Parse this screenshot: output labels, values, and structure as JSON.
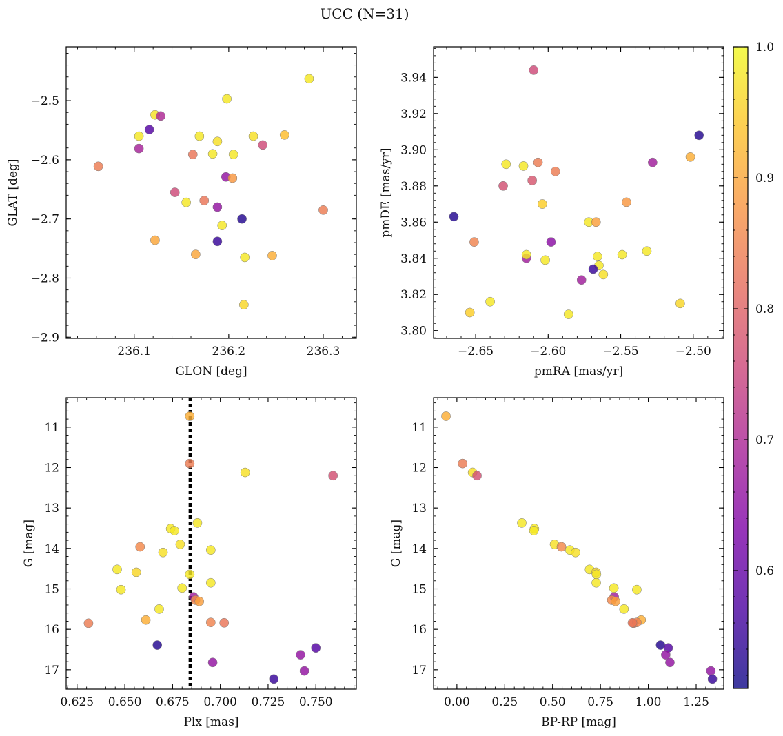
{
  "figure": {
    "title": "UCC (N=31)"
  },
  "colorbar": {
    "min": 0.51,
    "max": 1.0,
    "ticks": [
      0.6,
      0.7,
      0.8,
      0.9,
      1.0
    ],
    "tick_labels": [
      "0.6",
      "0.7",
      "0.8",
      "0.9",
      "1.0"
    ],
    "colormap": "plasma"
  },
  "chart_data": [
    {
      "type": "scatter",
      "xlabel": "GLON [deg]",
      "ylabel": "GLAT [deg]",
      "xlim": [
        236.028,
        236.335
      ],
      "ylim": [
        -2.902,
        -2.409
      ],
      "xticks": [
        236.1,
        236.2,
        236.3
      ],
      "xtick_labels": [
        "236.1",
        "236.2",
        "236.3"
      ],
      "yticks": [
        -2.9,
        -2.8,
        -2.7,
        -2.6,
        -2.5
      ],
      "ytick_labels": [
        "−2.9",
        "−2.8",
        "−2.7",
        "−2.6",
        "−2.5"
      ],
      "points": [
        {
          "x": 236.285,
          "y": -2.463,
          "c": 0.98
        },
        {
          "x": 236.198,
          "y": -2.497,
          "c": 0.98
        },
        {
          "x": 236.122,
          "y": -2.524,
          "c": 0.97
        },
        {
          "x": 236.128,
          "y": -2.526,
          "c": 0.7
        },
        {
          "x": 236.116,
          "y": -2.549,
          "c": 0.58
        },
        {
          "x": 236.105,
          "y": -2.56,
          "c": 0.98
        },
        {
          "x": 236.169,
          "y": -2.56,
          "c": 0.98
        },
        {
          "x": 236.259,
          "y": -2.558,
          "c": 0.93
        },
        {
          "x": 236.226,
          "y": -2.56,
          "c": 0.97
        },
        {
          "x": 236.188,
          "y": -2.569,
          "c": 0.97
        },
        {
          "x": 236.236,
          "y": -2.575,
          "c": 0.76
        },
        {
          "x": 236.105,
          "y": -2.581,
          "c": 0.69
        },
        {
          "x": 236.162,
          "y": -2.591,
          "c": 0.83
        },
        {
          "x": 236.183,
          "y": -2.59,
          "c": 0.98
        },
        {
          "x": 236.205,
          "y": -2.591,
          "c": 0.98
        },
        {
          "x": 236.062,
          "y": -2.611,
          "c": 0.84
        },
        {
          "x": 236.197,
          "y": -2.629,
          "c": 0.66
        },
        {
          "x": 236.204,
          "y": -2.631,
          "c": 0.88
        },
        {
          "x": 236.143,
          "y": -2.655,
          "c": 0.76
        },
        {
          "x": 236.155,
          "y": -2.672,
          "c": 0.98
        },
        {
          "x": 236.174,
          "y": -2.669,
          "c": 0.83
        },
        {
          "x": 236.188,
          "y": -2.68,
          "c": 0.66
        },
        {
          "x": 236.3,
          "y": -2.685,
          "c": 0.84
        },
        {
          "x": 236.214,
          "y": -2.7,
          "c": 0.53
        },
        {
          "x": 236.193,
          "y": -2.711,
          "c": 0.98
        },
        {
          "x": 236.122,
          "y": -2.736,
          "c": 0.9
        },
        {
          "x": 236.188,
          "y": -2.738,
          "c": 0.55
        },
        {
          "x": 236.165,
          "y": -2.76,
          "c": 0.9
        },
        {
          "x": 236.217,
          "y": -2.765,
          "c": 0.98
        },
        {
          "x": 236.246,
          "y": -2.762,
          "c": 0.91
        },
        {
          "x": 236.216,
          "y": -2.845,
          "c": 0.96
        }
      ]
    },
    {
      "type": "scatter",
      "xlabel": "pmRA [mas/yr]",
      "ylabel": "pmDE [mas/yr]",
      "xlim": [
        -2.679,
        -2.479
      ],
      "ylim": [
        3.7957,
        3.9569
      ],
      "xticks": [
        -2.65,
        -2.6,
        -2.55,
        -2.5
      ],
      "xtick_labels": [
        "−2.65",
        "−2.60",
        "−2.55",
        "−2.50"
      ],
      "yticks": [
        3.8,
        3.82,
        3.84,
        3.86,
        3.88,
        3.9,
        3.92,
        3.94
      ],
      "ytick_labels": [
        "3.80",
        "3.82",
        "3.84",
        "3.86",
        "3.88",
        "3.90",
        "3.92",
        "3.94"
      ],
      "points": [
        {
          "x": -2.61,
          "y": 3.944,
          "c": 0.76
        },
        {
          "x": -2.496,
          "y": 3.908,
          "c": 0.53
        },
        {
          "x": -2.502,
          "y": 3.896,
          "c": 0.91
        },
        {
          "x": -2.528,
          "y": 3.893,
          "c": 0.68
        },
        {
          "x": -2.629,
          "y": 3.892,
          "c": 0.98
        },
        {
          "x": -2.617,
          "y": 3.891,
          "c": 0.98
        },
        {
          "x": -2.607,
          "y": 3.893,
          "c": 0.84
        },
        {
          "x": -2.595,
          "y": 3.888,
          "c": 0.84
        },
        {
          "x": -2.611,
          "y": 3.883,
          "c": 0.78
        },
        {
          "x": -2.631,
          "y": 3.88,
          "c": 0.77
        },
        {
          "x": -2.604,
          "y": 3.87,
          "c": 0.95
        },
        {
          "x": -2.546,
          "y": 3.871,
          "c": 0.88
        },
        {
          "x": -2.665,
          "y": 3.863,
          "c": 0.53
        },
        {
          "x": -2.572,
          "y": 3.86,
          "c": 0.98
        },
        {
          "x": -2.567,
          "y": 3.86,
          "c": 0.89
        },
        {
          "x": -2.651,
          "y": 3.849,
          "c": 0.85
        },
        {
          "x": -2.598,
          "y": 3.849,
          "c": 0.65
        },
        {
          "x": -2.532,
          "y": 3.844,
          "c": 0.98
        },
        {
          "x": -2.549,
          "y": 3.842,
          "c": 0.98
        },
        {
          "x": -2.566,
          "y": 3.841,
          "c": 0.98
        },
        {
          "x": -2.615,
          "y": 3.84,
          "c": 0.68
        },
        {
          "x": -2.615,
          "y": 3.842,
          "c": 0.98
        },
        {
          "x": -2.602,
          "y": 3.839,
          "c": 0.98
        },
        {
          "x": -2.565,
          "y": 3.836,
          "c": 0.98
        },
        {
          "x": -2.569,
          "y": 3.834,
          "c": 0.55
        },
        {
          "x": -2.562,
          "y": 3.831,
          "c": 0.97
        },
        {
          "x": -2.577,
          "y": 3.828,
          "c": 0.68
        },
        {
          "x": -2.64,
          "y": 3.816,
          "c": 0.98
        },
        {
          "x": -2.509,
          "y": 3.815,
          "c": 0.96
        },
        {
          "x": -2.654,
          "y": 3.81,
          "c": 0.95
        },
        {
          "x": -2.586,
          "y": 3.809,
          "c": 0.98
        }
      ]
    },
    {
      "type": "scatter",
      "xlabel": "Plx [mas]",
      "ylabel": "G [mag]",
      "xlim": [
        0.6193,
        0.7712
      ],
      "ylim": [
        17.48,
        10.27
      ],
      "y_inverted": true,
      "xticks": [
        0.625,
        0.65,
        0.675,
        0.7,
        0.725,
        0.75
      ],
      "xtick_labels": [
        "0.625",
        "0.650",
        "0.675",
        "0.700",
        "0.725",
        "0.750"
      ],
      "yticks": [
        11,
        12,
        13,
        14,
        15,
        16,
        17
      ],
      "ytick_labels": [
        "11",
        "12",
        "13",
        "14",
        "15",
        "16",
        "17"
      ],
      "vline": {
        "x": 0.6843,
        "style": "dotted",
        "color": "#000000"
      },
      "points": [
        {
          "x": 0.684,
          "y": 10.73,
          "c": 0.91
        },
        {
          "x": 0.684,
          "y": 11.9,
          "c": 0.84
        },
        {
          "x": 0.713,
          "y": 12.12,
          "c": 0.97
        },
        {
          "x": 0.759,
          "y": 12.2,
          "c": 0.77
        },
        {
          "x": 0.688,
          "y": 13.37,
          "c": 0.98
        },
        {
          "x": 0.674,
          "y": 13.51,
          "c": 0.98
        },
        {
          "x": 0.676,
          "y": 13.56,
          "c": 0.98
        },
        {
          "x": 0.679,
          "y": 13.9,
          "c": 0.97
        },
        {
          "x": 0.658,
          "y": 13.96,
          "c": 0.86
        },
        {
          "x": 0.695,
          "y": 14.04,
          "c": 0.98
        },
        {
          "x": 0.67,
          "y": 14.1,
          "c": 0.97
        },
        {
          "x": 0.646,
          "y": 14.52,
          "c": 0.98
        },
        {
          "x": 0.656,
          "y": 14.59,
          "c": 0.96
        },
        {
          "x": 0.684,
          "y": 14.64,
          "c": 0.98
        },
        {
          "x": 0.695,
          "y": 14.85,
          "c": 0.98
        },
        {
          "x": 0.68,
          "y": 14.98,
          "c": 0.98
        },
        {
          "x": 0.648,
          "y": 15.02,
          "c": 0.98
        },
        {
          "x": 0.686,
          "y": 15.2,
          "c": 0.68
        },
        {
          "x": 0.687,
          "y": 15.28,
          "c": 0.86
        },
        {
          "x": 0.689,
          "y": 15.31,
          "c": 0.89
        },
        {
          "x": 0.668,
          "y": 15.5,
          "c": 0.98
        },
        {
          "x": 0.661,
          "y": 15.77,
          "c": 0.91
        },
        {
          "x": 0.631,
          "y": 15.85,
          "c": 0.84
        },
        {
          "x": 0.695,
          "y": 15.83,
          "c": 0.85
        },
        {
          "x": 0.702,
          "y": 15.84,
          "c": 0.83
        },
        {
          "x": 0.667,
          "y": 16.39,
          "c": 0.53
        },
        {
          "x": 0.75,
          "y": 16.46,
          "c": 0.58
        },
        {
          "x": 0.742,
          "y": 16.63,
          "c": 0.66
        },
        {
          "x": 0.696,
          "y": 16.82,
          "c": 0.66
        },
        {
          "x": 0.744,
          "y": 17.03,
          "c": 0.66
        },
        {
          "x": 0.728,
          "y": 17.23,
          "c": 0.55
        }
      ]
    },
    {
      "type": "scatter",
      "xlabel": "BP-RP [mag]",
      "ylabel": "G [mag]",
      "xlim": [
        -0.122,
        1.394
      ],
      "ylim": [
        17.48,
        10.27
      ],
      "y_inverted": true,
      "xticks": [
        0.0,
        0.25,
        0.5,
        0.75,
        1.0,
        1.25
      ],
      "xtick_labels": [
        "0.00",
        "0.25",
        "0.50",
        "0.75",
        "1.00",
        "1.25"
      ],
      "yticks": [
        11,
        12,
        13,
        14,
        15,
        16,
        17
      ],
      "ytick_labels": [
        "11",
        "12",
        "13",
        "14",
        "15",
        "16",
        "17"
      ],
      "points": [
        {
          "x": -0.057,
          "y": 10.73,
          "c": 0.91
        },
        {
          "x": 0.03,
          "y": 11.9,
          "c": 0.84
        },
        {
          "x": 0.082,
          "y": 12.12,
          "c": 0.97
        },
        {
          "x": 0.105,
          "y": 12.2,
          "c": 0.77
        },
        {
          "x": 0.339,
          "y": 13.37,
          "c": 0.98
        },
        {
          "x": 0.405,
          "y": 13.51,
          "c": 0.98
        },
        {
          "x": 0.402,
          "y": 13.56,
          "c": 0.98
        },
        {
          "x": 0.51,
          "y": 13.9,
          "c": 0.97
        },
        {
          "x": 0.546,
          "y": 13.96,
          "c": 0.86
        },
        {
          "x": 0.59,
          "y": 14.04,
          "c": 0.98
        },
        {
          "x": 0.62,
          "y": 14.1,
          "c": 0.97
        },
        {
          "x": 0.693,
          "y": 14.52,
          "c": 0.98
        },
        {
          "x": 0.727,
          "y": 14.59,
          "c": 0.96
        },
        {
          "x": 0.729,
          "y": 14.64,
          "c": 0.98
        },
        {
          "x": 0.728,
          "y": 14.85,
          "c": 0.98
        },
        {
          "x": 0.82,
          "y": 14.98,
          "c": 0.98
        },
        {
          "x": 0.94,
          "y": 15.02,
          "c": 0.98
        },
        {
          "x": 0.822,
          "y": 15.2,
          "c": 0.68
        },
        {
          "x": 0.809,
          "y": 15.28,
          "c": 0.86
        },
        {
          "x": 0.829,
          "y": 15.31,
          "c": 0.89
        },
        {
          "x": 0.873,
          "y": 15.5,
          "c": 0.98
        },
        {
          "x": 0.963,
          "y": 15.77,
          "c": 0.91
        },
        {
          "x": 0.924,
          "y": 15.85,
          "c": 0.84
        },
        {
          "x": 0.94,
          "y": 15.83,
          "c": 0.85
        },
        {
          "x": 0.917,
          "y": 15.84,
          "c": 0.83
        },
        {
          "x": 1.064,
          "y": 16.39,
          "c": 0.53
        },
        {
          "x": 1.104,
          "y": 16.46,
          "c": 0.58
        },
        {
          "x": 1.091,
          "y": 16.63,
          "c": 0.66
        },
        {
          "x": 1.113,
          "y": 16.82,
          "c": 0.66
        },
        {
          "x": 1.327,
          "y": 17.03,
          "c": 0.66
        },
        {
          "x": 1.335,
          "y": 17.23,
          "c": 0.55
        }
      ]
    }
  ]
}
